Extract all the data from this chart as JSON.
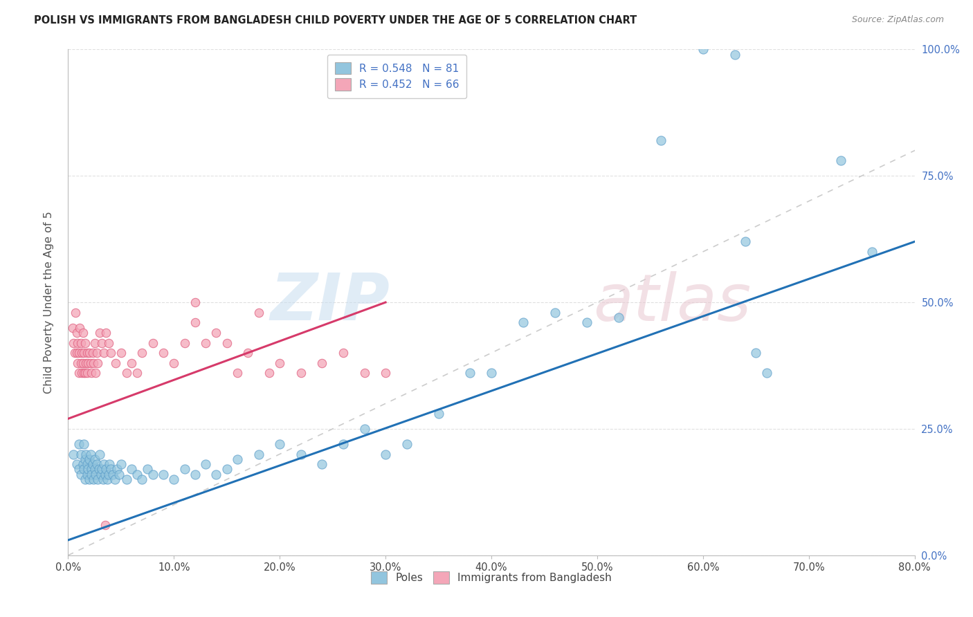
{
  "title": "POLISH VS IMMIGRANTS FROM BANGLADESH CHILD POVERTY UNDER THE AGE OF 5 CORRELATION CHART",
  "source": "Source: ZipAtlas.com",
  "ylabel": "Child Poverty Under the Age of 5",
  "xlim": [
    0.0,
    0.8
  ],
  "ylim": [
    0.0,
    1.0
  ],
  "blue_R": 0.548,
  "blue_N": 81,
  "pink_R": 0.452,
  "pink_N": 66,
  "blue_color": "#92c5de",
  "pink_color": "#f4a6b8",
  "blue_edge_color": "#5b9dc9",
  "pink_edge_color": "#e06080",
  "blue_line_color": "#2171b5",
  "pink_line_color": "#d63a6a",
  "diagonal_color": "#cccccc",
  "background_color": "#ffffff",
  "grid_color": "#e0e0e0",
  "blue_line_x": [
    0.0,
    0.8
  ],
  "blue_line_y": [
    0.03,
    0.62
  ],
  "pink_line_x": [
    0.0,
    0.3
  ],
  "pink_line_y": [
    0.27,
    0.5
  ],
  "xtick_vals": [
    0.0,
    0.1,
    0.2,
    0.3,
    0.4,
    0.5,
    0.6,
    0.7,
    0.8
  ],
  "xtick_labels": [
    "0.0%",
    "10.0%",
    "20.0%",
    "30.0%",
    "40.0%",
    "50.0%",
    "60.0%",
    "70.0%",
    "80.0%"
  ],
  "ytick_vals": [
    0.0,
    0.25,
    0.5,
    0.75,
    1.0
  ],
  "ytick_labels": [
    "0.0%",
    "25.0%",
    "50.0%",
    "75.0%",
    "100.0%"
  ],
  "blue_x": [
    0.005,
    0.008,
    0.01,
    0.01,
    0.012,
    0.012,
    0.014,
    0.015,
    0.015,
    0.016,
    0.016,
    0.017,
    0.018,
    0.018,
    0.019,
    0.02,
    0.02,
    0.021,
    0.022,
    0.022,
    0.023,
    0.024,
    0.025,
    0.025,
    0.026,
    0.027,
    0.028,
    0.029,
    0.03,
    0.031,
    0.032,
    0.033,
    0.034,
    0.035,
    0.036,
    0.037,
    0.038,
    0.039,
    0.04,
    0.042,
    0.044,
    0.046,
    0.048,
    0.05,
    0.055,
    0.06,
    0.065,
    0.07,
    0.075,
    0.08,
    0.09,
    0.1,
    0.11,
    0.12,
    0.13,
    0.14,
    0.15,
    0.16,
    0.18,
    0.2,
    0.22,
    0.24,
    0.26,
    0.28,
    0.3,
    0.32,
    0.35,
    0.38,
    0.4,
    0.43,
    0.46,
    0.49,
    0.52,
    0.56,
    0.6,
    0.63,
    0.64,
    0.65,
    0.66,
    0.73,
    0.76
  ],
  "blue_y": [
    0.2,
    0.18,
    0.22,
    0.17,
    0.2,
    0.16,
    0.18,
    0.22,
    0.17,
    0.19,
    0.15,
    0.2,
    0.18,
    0.16,
    0.17,
    0.19,
    0.15,
    0.2,
    0.17,
    0.16,
    0.18,
    0.15,
    0.17,
    0.19,
    0.16,
    0.18,
    0.15,
    0.17,
    0.2,
    0.16,
    0.17,
    0.15,
    0.18,
    0.16,
    0.17,
    0.15,
    0.16,
    0.18,
    0.17,
    0.16,
    0.15,
    0.17,
    0.16,
    0.18,
    0.15,
    0.17,
    0.16,
    0.15,
    0.17,
    0.16,
    0.16,
    0.15,
    0.17,
    0.16,
    0.18,
    0.16,
    0.17,
    0.19,
    0.2,
    0.22,
    0.2,
    0.18,
    0.22,
    0.25,
    0.2,
    0.22,
    0.28,
    0.36,
    0.36,
    0.46,
    0.48,
    0.46,
    0.47,
    0.82,
    1.0,
    0.99,
    0.62,
    0.4,
    0.36,
    0.78,
    0.6
  ],
  "pink_x": [
    0.004,
    0.005,
    0.006,
    0.007,
    0.008,
    0.008,
    0.009,
    0.009,
    0.01,
    0.01,
    0.011,
    0.012,
    0.012,
    0.013,
    0.013,
    0.014,
    0.014,
    0.015,
    0.015,
    0.016,
    0.016,
    0.017,
    0.018,
    0.018,
    0.019,
    0.02,
    0.021,
    0.022,
    0.023,
    0.024,
    0.025,
    0.026,
    0.027,
    0.028,
    0.03,
    0.032,
    0.034,
    0.036,
    0.038,
    0.04,
    0.045,
    0.05,
    0.055,
    0.06,
    0.065,
    0.07,
    0.08,
    0.09,
    0.1,
    0.11,
    0.12,
    0.13,
    0.14,
    0.15,
    0.16,
    0.17,
    0.18,
    0.19,
    0.2,
    0.22,
    0.24,
    0.26,
    0.28,
    0.3,
    0.12,
    0.035
  ],
  "pink_y": [
    0.45,
    0.42,
    0.4,
    0.48,
    0.44,
    0.4,
    0.38,
    0.42,
    0.36,
    0.4,
    0.45,
    0.38,
    0.42,
    0.36,
    0.4,
    0.38,
    0.44,
    0.36,
    0.4,
    0.42,
    0.36,
    0.38,
    0.4,
    0.36,
    0.38,
    0.4,
    0.38,
    0.36,
    0.4,
    0.38,
    0.42,
    0.36,
    0.4,
    0.38,
    0.44,
    0.42,
    0.4,
    0.44,
    0.42,
    0.4,
    0.38,
    0.4,
    0.36,
    0.38,
    0.36,
    0.4,
    0.42,
    0.4,
    0.38,
    0.42,
    0.46,
    0.42,
    0.44,
    0.42,
    0.36,
    0.4,
    0.48,
    0.36,
    0.38,
    0.36,
    0.38,
    0.4,
    0.36,
    0.36,
    0.5,
    0.06
  ],
  "watermark_zip": "ZIP",
  "watermark_atlas": "atlas"
}
